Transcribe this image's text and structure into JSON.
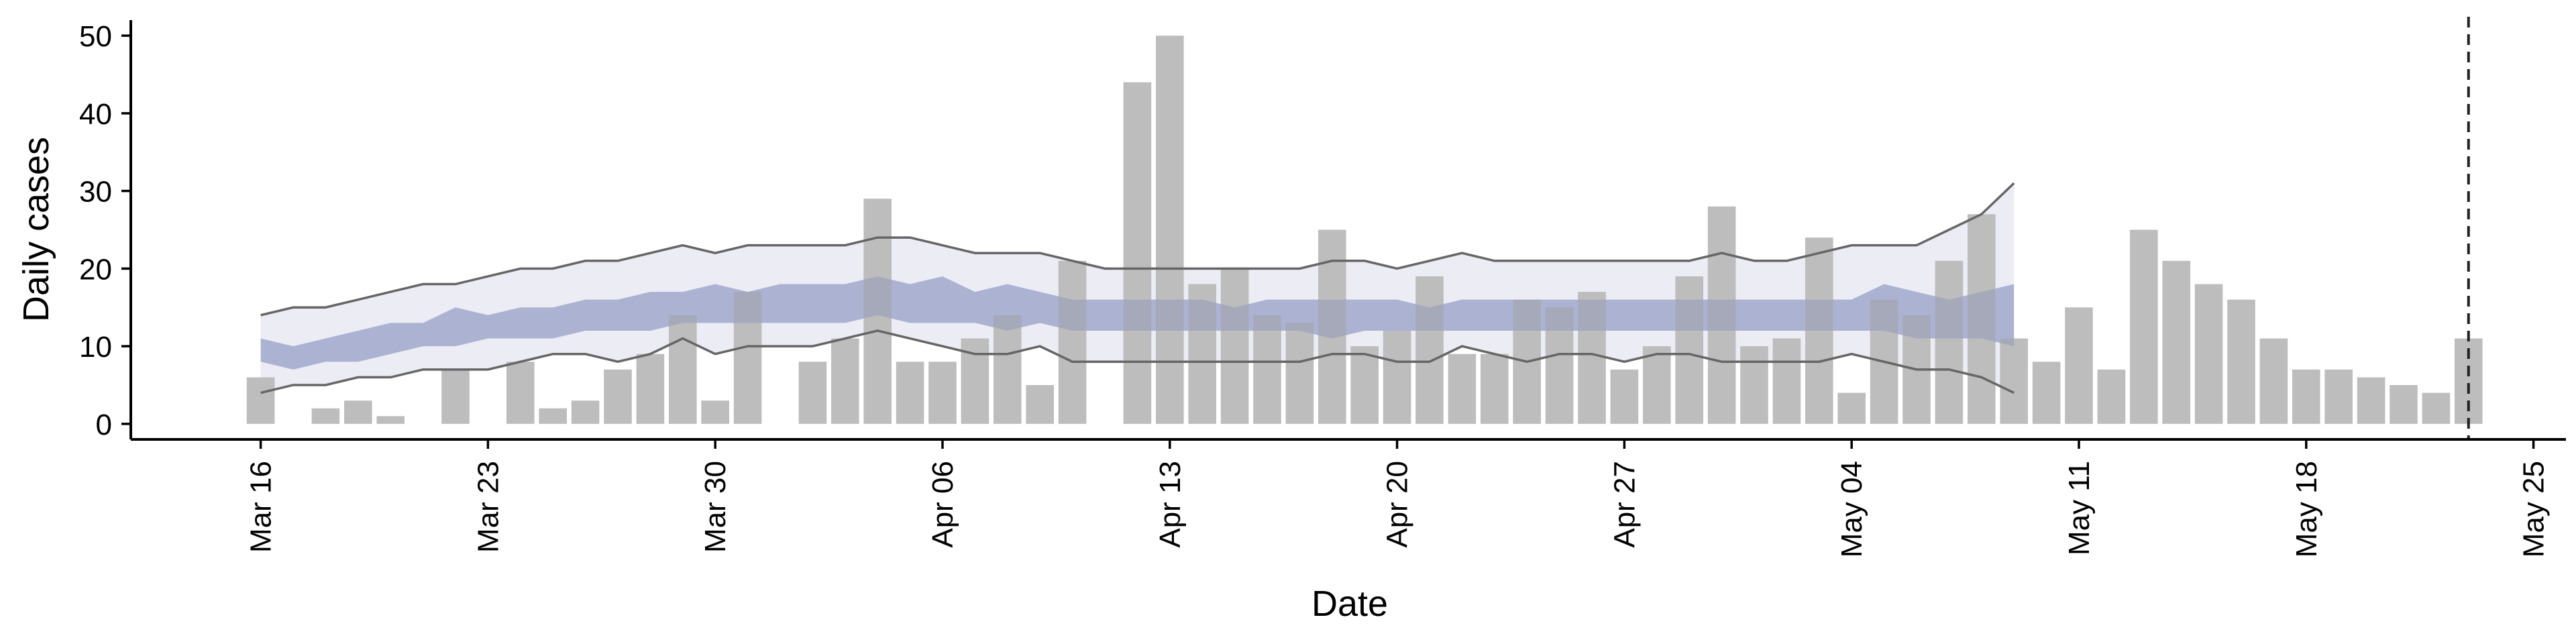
{
  "chart_data": {
    "type": "bar",
    "title": "",
    "xlabel": "Date",
    "ylabel": "Daily cases",
    "xlim": [
      "2020-03-12",
      "2020-05-26"
    ],
    "ylim": [
      -2,
      52
    ],
    "yticks": [
      0,
      10,
      20,
      30,
      40,
      50
    ],
    "xticks": [
      {
        "date": "2020-03-16",
        "label": "Mar 16"
      },
      {
        "date": "2020-03-23",
        "label": "Mar 23"
      },
      {
        "date": "2020-03-30",
        "label": "Mar 30"
      },
      {
        "date": "2020-04-06",
        "label": "Apr 06"
      },
      {
        "date": "2020-04-13",
        "label": "Apr 13"
      },
      {
        "date": "2020-04-20",
        "label": "Apr 20"
      },
      {
        "date": "2020-04-27",
        "label": "Apr 27"
      },
      {
        "date": "2020-05-04",
        "label": "May 04"
      },
      {
        "date": "2020-05-11",
        "label": "May 11"
      },
      {
        "date": "2020-05-18",
        "label": "May 18"
      },
      {
        "date": "2020-05-25",
        "label": "May 25"
      }
    ],
    "bars": {
      "start_date": "2020-03-16",
      "values": [
        6,
        0,
        2,
        3,
        1,
        0,
        7,
        0,
        8,
        2,
        3,
        7,
        9,
        14,
        3,
        17,
        0,
        8,
        11,
        29,
        8,
        8,
        11,
        14,
        5,
        21,
        0,
        44,
        50,
        18,
        20,
        14,
        13,
        25,
        10,
        12,
        19,
        9,
        9,
        16,
        15,
        17,
        7,
        10,
        19,
        28,
        10,
        11,
        24,
        4,
        16,
        14,
        21,
        27,
        11,
        8,
        15,
        7,
        25,
        21,
        18,
        16,
        11,
        7,
        7,
        6,
        5,
        4,
        11
      ],
      "color": "#bdbdbd"
    },
    "band": {
      "start_date": "2020-03-16",
      "outer_upper": [
        14,
        15,
        15,
        16,
        17,
        18,
        18,
        19,
        20,
        20,
        21,
        21,
        22,
        23,
        22,
        23,
        23,
        23,
        23,
        24,
        24,
        23,
        22,
        22,
        22,
        21,
        20,
        20,
        20,
        20,
        20,
        20,
        20,
        21,
        21,
        20,
        21,
        22,
        21,
        21,
        21,
        21,
        21,
        21,
        21,
        22,
        21,
        21,
        22,
        23,
        23,
        23,
        25,
        27,
        31
      ],
      "inner_upper": [
        11,
        10,
        11,
        12,
        13,
        13,
        15,
        14,
        15,
        15,
        16,
        16,
        17,
        17,
        18,
        17,
        18,
        18,
        18,
        19,
        18,
        19,
        17,
        18,
        17,
        16,
        16,
        16,
        16,
        16,
        15,
        16,
        16,
        16,
        16,
        16,
        15,
        16,
        16,
        16,
        16,
        16,
        16,
        16,
        16,
        16,
        16,
        16,
        16,
        16,
        18,
        17,
        16,
        17,
        18
      ],
      "inner_lower": [
        8,
        7,
        8,
        8,
        9,
        10,
        10,
        11,
        11,
        11,
        12,
        12,
        12,
        13,
        13,
        13,
        13,
        13,
        13,
        14,
        13,
        13,
        13,
        12,
        13,
        12,
        12,
        12,
        12,
        12,
        12,
        12,
        12,
        11,
        12,
        12,
        12,
        12,
        12,
        12,
        12,
        12,
        12,
        12,
        12,
        12,
        12,
        12,
        12,
        12,
        12,
        11,
        11,
        11,
        10
      ],
      "outer_lower": [
        4,
        5,
        5,
        6,
        6,
        7,
        7,
        7,
        8,
        9,
        9,
        8,
        9,
        11,
        9,
        10,
        10,
        10,
        11,
        12,
        11,
        10,
        9,
        9,
        10,
        8,
        8,
        8,
        8,
        8,
        8,
        8,
        8,
        9,
        9,
        8,
        8,
        10,
        9,
        8,
        9,
        9,
        8,
        9,
        9,
        8,
        8,
        8,
        8,
        9,
        8,
        7,
        7,
        6,
        4
      ],
      "outer_color": "#9aa2c8",
      "inner_color": "#7480b4",
      "line_color": "#666666"
    },
    "vline_date": "2020-05-23"
  }
}
